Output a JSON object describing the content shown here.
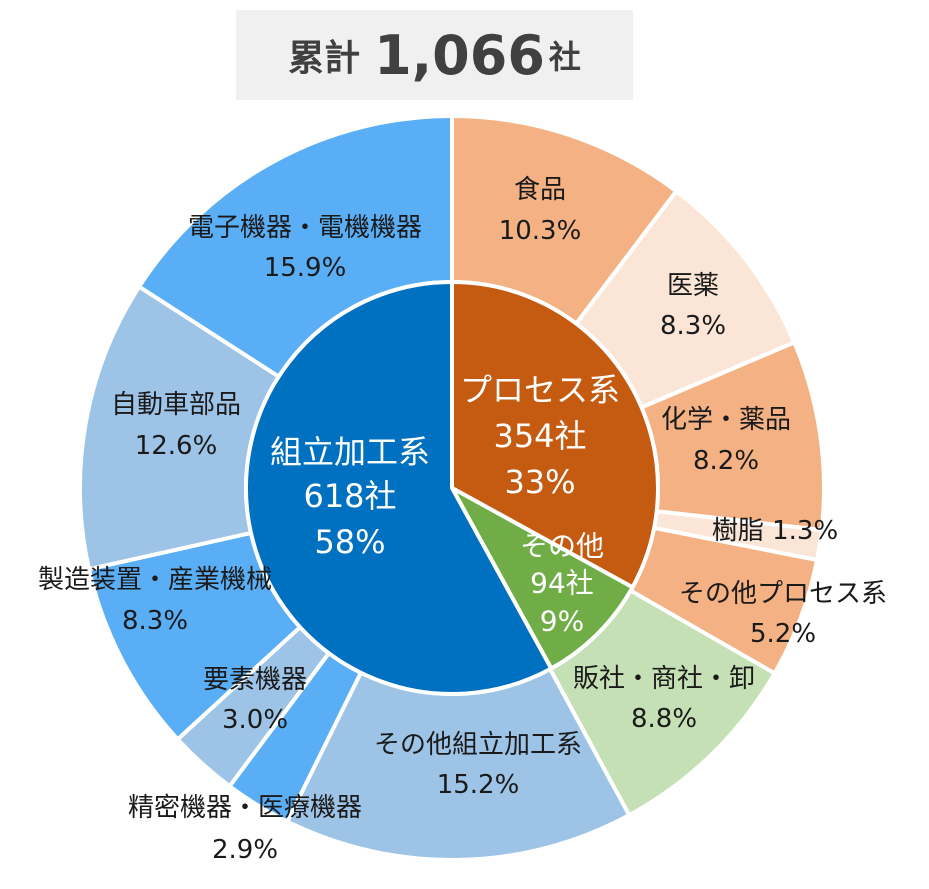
{
  "total": {
    "label": "累計",
    "value": "1,066",
    "unit": "社"
  },
  "chart_data": {
    "type": "pie",
    "subtype": "nested-donut",
    "inner": [
      {
        "label": "組立加工系",
        "count": "618社",
        "pct": "58%",
        "value": 58,
        "color": "#0070c0"
      },
      {
        "label": "プロセス系",
        "count": "354社",
        "pct": "33%",
        "value": 33,
        "color": "#c55a11"
      },
      {
        "label": "その他",
        "count": "94社",
        "pct": "9%",
        "value": 9,
        "color": "#70ad47"
      }
    ],
    "outer": [
      {
        "label": "食品",
        "pct": "10.3%",
        "value": 10.3,
        "color": "#f4b183"
      },
      {
        "label": "医薬",
        "pct": "8.3%",
        "value": 8.3,
        "color": "#fbe5d6"
      },
      {
        "label": "化学・薬品",
        "pct": "8.2%",
        "value": 8.2,
        "color": "#f4b183"
      },
      {
        "label": "樹脂",
        "pct": "1.3%",
        "value": 1.3,
        "color": "#fbe5d6"
      },
      {
        "label": "その他プロセス系",
        "pct": "5.2%",
        "value": 5.2,
        "color": "#f4b183"
      },
      {
        "label": "販社・商社・卸",
        "pct": "8.8%",
        "value": 8.8,
        "color": "#c5e0b4"
      },
      {
        "label": "その他組立加工系",
        "pct": "15.2%",
        "value": 15.2,
        "color": "#9dc3e6"
      },
      {
        "label": "精密機器・医療機器",
        "pct": "2.9%",
        "value": 2.9,
        "color": "#5aaef5"
      },
      {
        "label": "要素機器",
        "pct": "3.0%",
        "value": 3.0,
        "color": "#9dc3e6"
      },
      {
        "label": "製造装置・産業機械",
        "pct": "8.3%",
        "value": 8.3,
        "color": "#5aaef5"
      },
      {
        "label": "自動車部品",
        "pct": "12.6%",
        "value": 12.6,
        "color": "#9dc3e6"
      },
      {
        "label": "電子機器・電機機器",
        "pct": "15.9%",
        "value": 15.9,
        "color": "#5aaef5"
      }
    ]
  }
}
